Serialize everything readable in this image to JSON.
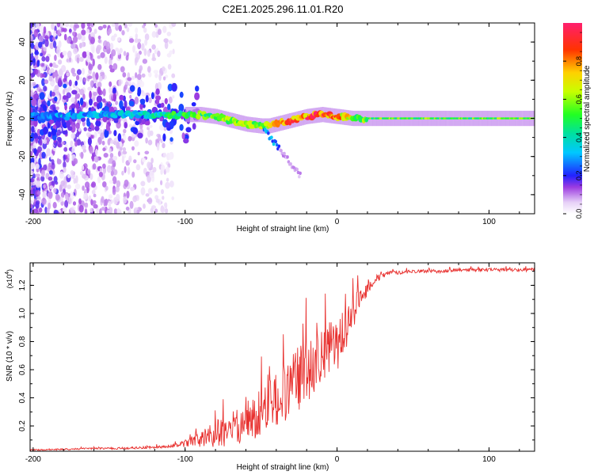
{
  "title": "C2E1.2025.296.11.01.R20",
  "chart_data": [
    {
      "type": "heatmap",
      "xlabel": "Height of straight line (km)",
      "ylabel": "Frequency (Hz)",
      "xlim": [
        -202,
        130
      ],
      "ylim": [
        -50,
        50
      ],
      "xticks": [
        -200,
        -100,
        0,
        100
      ],
      "xtick_labels": [
        "-200",
        "-100",
        "0",
        "100"
      ],
      "yticks": [
        -40,
        -20,
        0,
        20,
        40
      ],
      "ytick_labels": [
        "-40",
        "-20",
        "0",
        "20",
        "40"
      ],
      "colorbar": {
        "label": "Normalized spectral amplitude",
        "range": [
          0,
          1
        ],
        "ticks": [
          0.0,
          0.2,
          0.4,
          0.6,
          0.8
        ],
        "tick_labels": [
          "0.0",
          "0.2",
          "0.4",
          "0.6",
          "0.8"
        ]
      },
      "center_track": {
        "x": [
          -202,
          -180,
          -160,
          -140,
          -120,
          -100,
          -90,
          -80,
          -70,
          -60,
          -50,
          -45,
          -40,
          -30,
          -20,
          -10,
          0,
          10,
          20,
          40,
          60,
          80,
          100,
          130
        ],
        "freq": [
          1,
          1,
          2,
          2,
          2,
          2,
          2,
          1,
          -1,
          -3,
          -4,
          -4,
          -3,
          -1,
          1,
          2,
          1,
          0,
          0,
          0,
          0,
          0,
          0,
          0
        ],
        "amplitude": [
          0.25,
          0.3,
          0.3,
          0.35,
          0.4,
          0.5,
          0.55,
          0.55,
          0.55,
          0.6,
          0.6,
          0.65,
          0.7,
          0.8,
          0.9,
          0.9,
          0.85,
          0.6,
          0.55,
          0.55,
          0.55,
          0.55,
          0.55,
          0.55
        ]
      }
    },
    {
      "type": "line",
      "xlabel": "Height of straight line (km)",
      "ylabel": "SNR (10 * v/v)",
      "scale_label": "(x10",
      "scale_exponent": "4",
      "scale_suffix": ")",
      "xlim": [
        -202,
        130
      ],
      "ylim": [
        0.02,
        1.36
      ],
      "xticks": [
        -200,
        -100,
        0,
        100
      ],
      "xtick_labels": [
        "-200",
        "-100",
        "0",
        "100"
      ],
      "yticks": [
        0.2,
        0.4,
        0.6,
        0.8,
        1.0,
        1.2
      ],
      "ytick_labels": [
        "0.2",
        "0.4",
        "0.6",
        "0.8",
        "1.0",
        "1.2"
      ],
      "series": [
        {
          "name": "SNR",
          "color": "#e8312f",
          "x": [
            -202,
            -190,
            -175,
            -160,
            -145,
            -130,
            -115,
            -105,
            -98,
            -90,
            -85,
            -80,
            -75,
            -70,
            -65,
            -60,
            -55,
            -50,
            -45,
            -40,
            -35,
            -30,
            -25,
            -20,
            -15,
            -10,
            -5,
            0,
            5,
            10,
            15,
            20,
            25,
            30,
            35,
            40,
            50,
            60,
            70,
            80,
            90,
            100,
            110,
            120,
            130
          ],
          "values": [
            0.03,
            0.03,
            0.035,
            0.04,
            0.04,
            0.045,
            0.05,
            0.06,
            0.08,
            0.1,
            0.12,
            0.14,
            0.16,
            0.18,
            0.2,
            0.23,
            0.26,
            0.3,
            0.34,
            0.38,
            0.43,
            0.48,
            0.54,
            0.6,
            0.66,
            0.72,
            0.74,
            0.78,
            0.88,
            1.0,
            1.1,
            1.18,
            1.24,
            1.27,
            1.29,
            1.29,
            1.3,
            1.3,
            1.3,
            1.31,
            1.31,
            1.31,
            1.31,
            1.31,
            1.31
          ],
          "spread": [
            0.005,
            0.005,
            0.006,
            0.006,
            0.007,
            0.008,
            0.01,
            0.015,
            0.03,
            0.05,
            0.08,
            0.1,
            0.12,
            0.12,
            0.13,
            0.14,
            0.16,
            0.18,
            0.2,
            0.2,
            0.22,
            0.24,
            0.24,
            0.24,
            0.22,
            0.2,
            0.2,
            0.2,
            0.16,
            0.12,
            0.08,
            0.05,
            0.03,
            0.02,
            0.015,
            0.012,
            0.012,
            0.012,
            0.012,
            0.012,
            0.012,
            0.012,
            0.012,
            0.012,
            0.012
          ]
        }
      ]
    }
  ]
}
